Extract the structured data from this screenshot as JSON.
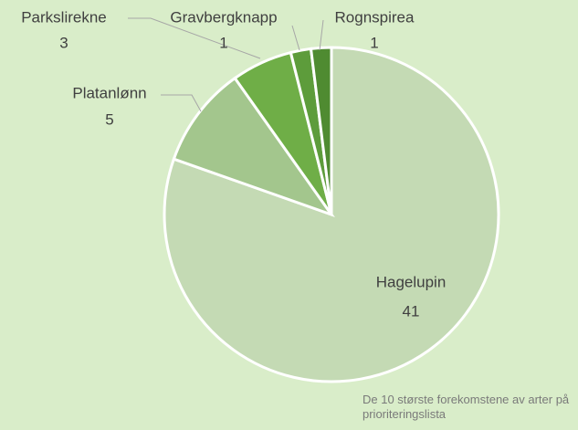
{
  "chart_data": {
    "type": "pie",
    "categories": [
      "Hagelupin",
      "Platanlønn",
      "Parkslirekne",
      "Gravbergknapp",
      "Rognspirea"
    ],
    "values": [
      41,
      5,
      3,
      1,
      1
    ],
    "colors": [
      "#c4dab4",
      "#a3c68d",
      "#6fae47",
      "#5d9c3b",
      "#4f8b31"
    ],
    "note": "De 10 største forekomstene av arter på prioriteringslista"
  }
}
